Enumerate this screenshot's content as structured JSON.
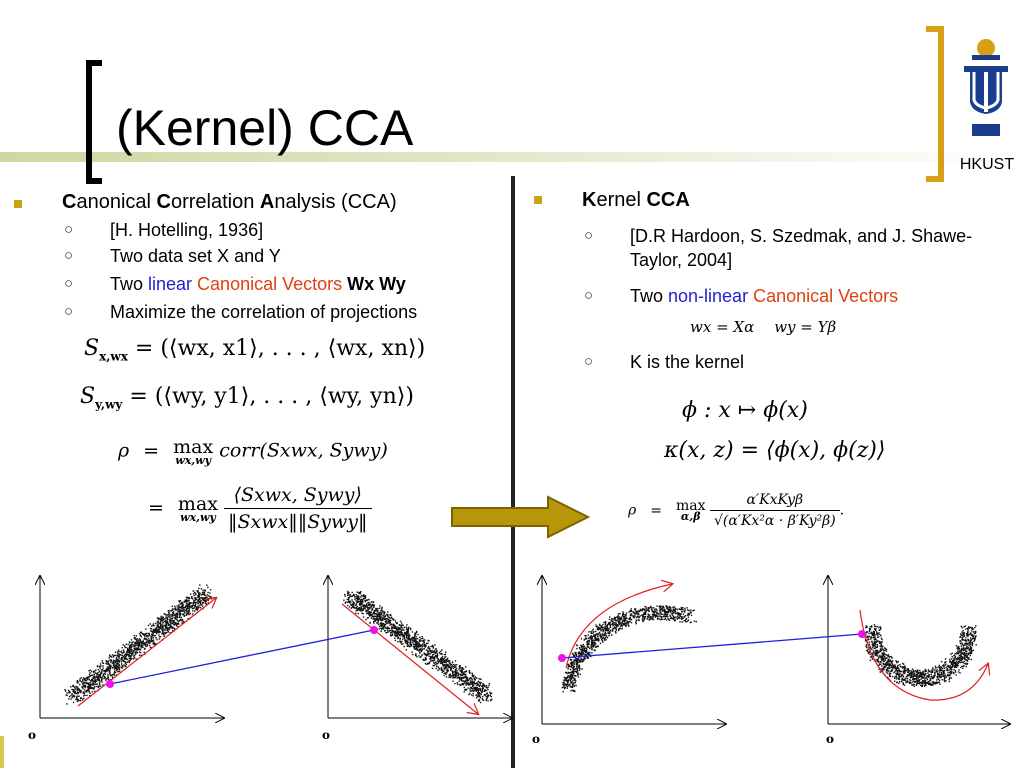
{
  "title": "(Kernel) CCA",
  "logo": {
    "text": "HKUST"
  },
  "colors": {
    "bullet": "#c8a418",
    "accent_bracket": "#d4a017",
    "blue": "#1f1fd1",
    "red": "#e04010",
    "arrow": "#b8960a"
  },
  "left": {
    "heading": {
      "c1": "C",
      "t1": "anonical ",
      "c2": "C",
      "t2": "orrelation ",
      "c3": "A",
      "t3": "nalysis",
      "t4": " (CCA)"
    },
    "items": [
      "[H. Hotelling, 1936]",
      "Two data set X and Y"
    ],
    "item3": {
      "t1": "Two ",
      "t2": "linear",
      "t3": " Canonical Vectors",
      "t4": " Wx  Wy"
    },
    "item4": "Maximize the correlation of projections",
    "eqs": {
      "sx": "S",
      "sx_sub": "x,wx",
      "sx_rhs": "= (⟨wx, x1⟩, . . . , ⟨wx, xn⟩)",
      "sy": "S",
      "sy_sub": "y,wy",
      "sy_rhs": "= (⟨wy, y1⟩, . . . , ⟨wy, yn⟩)",
      "rho": "ρ",
      "eq": "=",
      "max": "max",
      "max_sub": "wx,wy",
      "corr": "corr(Sxwx, Sywy)",
      "num": "⟨Sxwx, Sywy⟩",
      "den": "‖Sxwx‖‖Sywy‖"
    }
  },
  "right": {
    "heading": {
      "c1": "K",
      "t1": "ernel ",
      "t2": "CCA"
    },
    "item1": "[D.R Hardoon, S. Szedmak, and J. Shawe-Taylor, 2004]",
    "item2": {
      "t1": "Two ",
      "t2": "non-linear",
      "t3": " Canonical Vectors"
    },
    "wx_eq": "wx  =  Xα",
    "wy_eq": "wy  =  Yβ",
    "item3": "K is the kernel",
    "phi_eq": "ϕ : x ↦ ϕ(x)",
    "kappa_eq": "κ(x, z) = ⟨ϕ(x), ϕ(z)⟩",
    "rho": "ρ",
    "eq": "=",
    "max": "max",
    "max_sub": "α,β",
    "num": "α′KxKyβ",
    "den": "√(α′Kx²α · β′Ky²β)",
    "dot": "."
  },
  "plots": {
    "origin_label": "o"
  }
}
